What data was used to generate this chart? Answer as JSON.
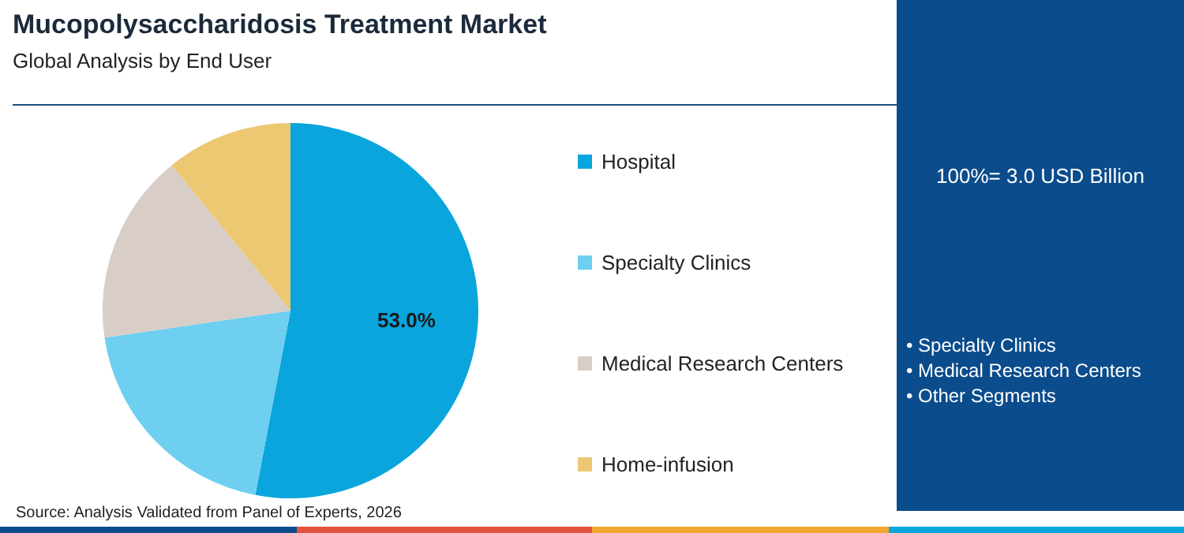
{
  "chart_data": {
    "type": "pie",
    "title": "Mucopolysaccharidosis Treatment Market",
    "subtitle": "Global Analysis by End User",
    "categories": [
      "Hospital",
      "Specialty Clinics",
      "Medical Research Centers",
      "Home-infusion"
    ],
    "values": [
      53.0,
      19.7,
      16.4,
      10.9
    ],
    "colors": [
      "#0aa5dc",
      "#6ecff0",
      "#d9cdc8",
      "#ecc873"
    ],
    "value_labels": [
      "53.0%",
      null,
      null,
      null
    ],
    "legend": "right",
    "annotations": [
      "Source: Analysis Validated from Panel of Experts, 2026",
      "100%= 3.0 USD Billion",
      "• Specialty Clinics",
      "• Medical Research Centers",
      "• Other Segments"
    ]
  }
}
